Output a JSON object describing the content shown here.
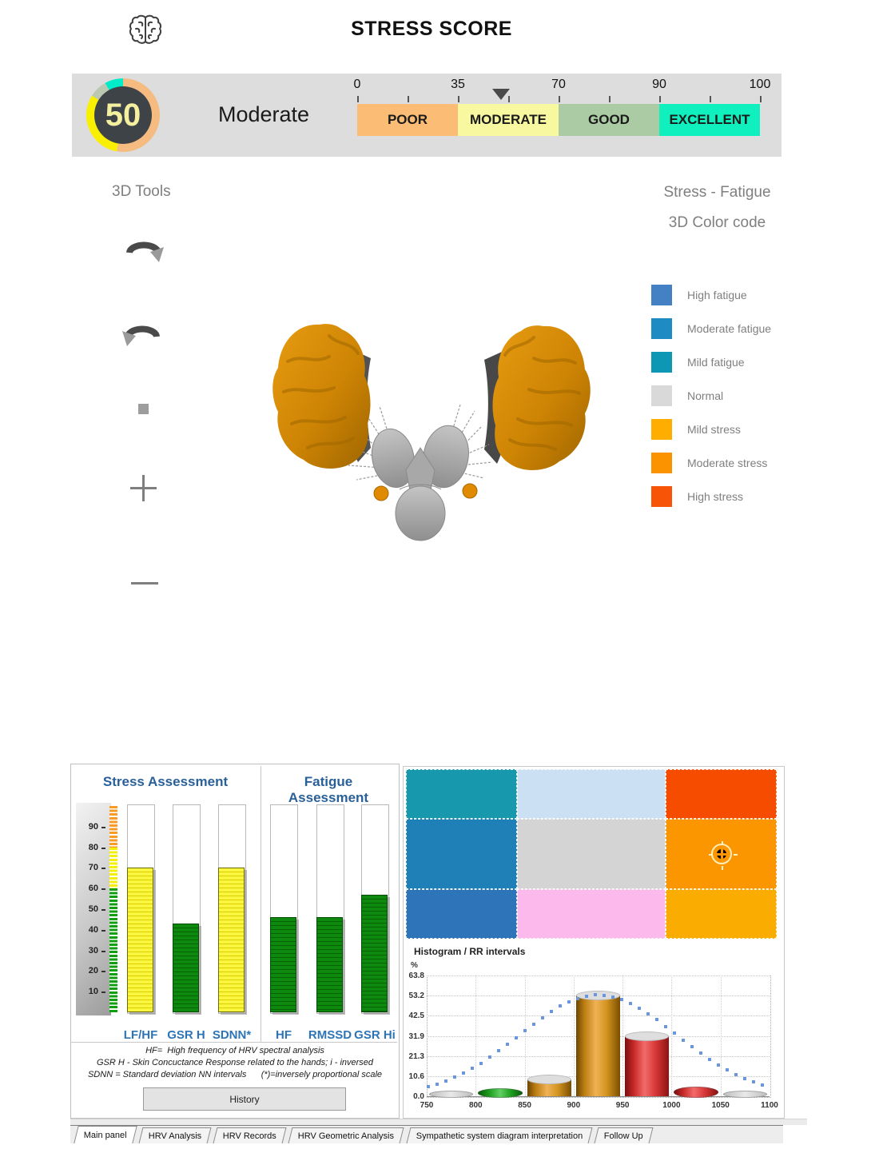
{
  "header": {
    "title": "STRESS SCORE"
  },
  "score_panel": {
    "score": "50",
    "label": "Moderate",
    "scale": {
      "tick_labels": [
        "0",
        "35",
        "70",
        "90",
        "100"
      ],
      "boundaries": [
        0,
        35,
        70,
        90,
        100
      ],
      "segments": [
        {
          "label": "POOR",
          "color": "#FBBD76"
        },
        {
          "label": "MODERATE",
          "color": "#F8F8A1"
        },
        {
          "label": "GOOD",
          "color": "#ABCBA4"
        },
        {
          "label": "EXCELLENT",
          "color": "#0FF0BE"
        }
      ],
      "marker_value": 50
    }
  },
  "tools": {
    "title": "3D Tools",
    "icons": [
      "rotate-clockwise-icon",
      "rotate-counterclockwise-icon",
      "stop-icon",
      "zoom-in-icon",
      "zoom-out-icon"
    ]
  },
  "legend": {
    "title_line1": "Stress - Fatigue",
    "title_line2": "3D Color code",
    "items": [
      {
        "label": "High fatigue",
        "color": "#4380C4"
      },
      {
        "label": "Moderate fatigue",
        "color": "#1E8BC3"
      },
      {
        "label": "Mild fatigue",
        "color": "#0E96B5"
      },
      {
        "label": "Normal",
        "color": "#D9D9D9"
      },
      {
        "label": "Mild stress",
        "color": "#FFAE00"
      },
      {
        "label": "Moderate stress",
        "color": "#FB9200"
      },
      {
        "label": "High stress",
        "color": "#F75408"
      }
    ]
  },
  "assessment": {
    "footnotes": [
      "HF=  High frequency of HRV spectral analysis",
      "GSR H - Skin Concuctance Response related to the hands; i - inversed",
      "SDNN = Standard deviation NN intervals      (*)=inversely proportional scale"
    ],
    "history_label": "History"
  },
  "matrix": {
    "rows": [
      [
        "#1898AC",
        "#CCE0F4",
        "#F54C00"
      ],
      [
        "#1F80B8",
        "#D4D4D4",
        "#FB9500"
      ],
      [
        "#2D74B8",
        "#FBB9EC",
        "#FBAC00"
      ]
    ],
    "crosshair": {
      "row": 1,
      "col": 2
    }
  },
  "chart_data": [
    {
      "type": "bar",
      "title": "Stress Assessment",
      "categories": [
        "LF/HF",
        "GSR H",
        "SDNN*"
      ],
      "values": [
        70,
        43,
        70
      ],
      "bar_colors": [
        "yellow",
        "green",
        "yellow"
      ],
      "ylim": [
        0,
        100
      ],
      "yticks": [
        10,
        20,
        30,
        40,
        50,
        60,
        70,
        80,
        90
      ],
      "axis_zones": [
        {
          "from": 0,
          "to": 60,
          "color": "#0FA00F"
        },
        {
          "from": 60,
          "to": 80,
          "color": "#F5F000"
        },
        {
          "from": 80,
          "to": 100,
          "color": "#F99B25"
        }
      ]
    },
    {
      "type": "bar",
      "title": "Fatigue Assessment",
      "categories": [
        "HF",
        "RMSSD",
        "GSR Hi"
      ],
      "values": [
        46,
        46,
        57
      ],
      "bar_colors": [
        "green",
        "green",
        "green"
      ],
      "ylim": [
        0,
        100
      ]
    },
    {
      "type": "bar+line",
      "title": "Histogram / RR intervals",
      "ylabel": "%",
      "yticks": [
        0.0,
        10.6,
        21.3,
        31.9,
        42.5,
        53.2,
        63.8
      ],
      "ylim": [
        0,
        63.8
      ],
      "xticks": [
        750,
        800,
        850,
        900,
        950,
        1000,
        1050,
        1100
      ],
      "bins": [
        {
          "x0": 750,
          "x1": 800,
          "value": 0.4,
          "color": "gray"
        },
        {
          "x0": 800,
          "x1": 850,
          "value": 1.5,
          "color": "green"
        },
        {
          "x0": 850,
          "x1": 900,
          "value": 9.0,
          "color": "gold"
        },
        {
          "x0": 900,
          "x1": 950,
          "value": 53.2,
          "color": "gold"
        },
        {
          "x0": 950,
          "x1": 1000,
          "value": 31.9,
          "color": "red"
        },
        {
          "x0": 1000,
          "x1": 1050,
          "value": 2.5,
          "color": "red"
        },
        {
          "x0": 1050,
          "x1": 1100,
          "value": 0.4,
          "color": "gray"
        }
      ],
      "curve": {
        "style": "dotted",
        "color": "#6B96DE",
        "peak": 53.5,
        "center": 925,
        "sigma": 80
      }
    }
  ],
  "tabs": [
    {
      "label": "Main panel",
      "active": true
    },
    {
      "label": "HRV Analysis",
      "active": false
    },
    {
      "label": "HRV Records",
      "active": false
    },
    {
      "label": "HRV Geometric Analysis",
      "active": false
    },
    {
      "label": "Sympathetic system diagram interpretation",
      "active": false
    },
    {
      "label": "Follow Up",
      "active": false
    }
  ]
}
